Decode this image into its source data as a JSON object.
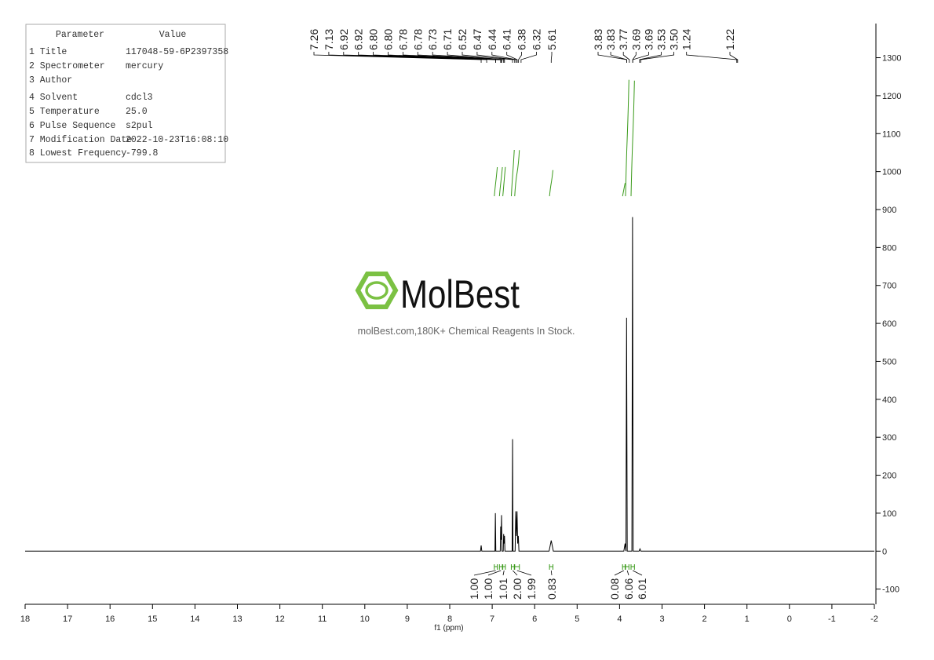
{
  "chart_data": {
    "type": "nmr",
    "xlabel": "f1 (ppm)",
    "xlim": [
      18,
      -2
    ],
    "ylim": [
      -140,
      1390
    ],
    "xticks": [
      18,
      17,
      16,
      15,
      14,
      13,
      12,
      11,
      10,
      9,
      8,
      7,
      6,
      5,
      4,
      3,
      2,
      1,
      0,
      -1,
      -2
    ],
    "yticks": [
      -100,
      0,
      100,
      200,
      300,
      400,
      500,
      600,
      700,
      800,
      900,
      1000,
      1100,
      1200,
      1300
    ],
    "x": [
      18,
      7.275,
      7.26,
      7.245,
      6.935,
      6.925,
      6.915,
      6.81,
      6.8,
      6.79,
      6.78,
      6.77,
      6.74,
      6.73,
      6.72,
      6.71,
      6.7,
      6.53,
      6.52,
      6.51,
      6.46,
      6.445,
      6.43,
      6.415,
      6.4,
      6.385,
      6.37,
      5.66,
      5.61,
      5.56,
      3.9,
      3.87,
      3.85,
      3.835,
      3.82,
      3.71,
      3.695,
      3.68,
      3.54,
      3.52,
      3.5,
      -2
    ],
    "series": [
      {
        "color": "#000000",
        "values": [
          0,
          0,
          15,
          0,
          0,
          100,
          0,
          0,
          65,
          30,
          95,
          0,
          0,
          45,
          20,
          40,
          0,
          0,
          295,
          0,
          0,
          105,
          40,
          105,
          20,
          40,
          0,
          0,
          28,
          0,
          0,
          20,
          0,
          615,
          0,
          0,
          880,
          0,
          0,
          6,
          0,
          0
        ]
      }
    ],
    "peaks": {
      "values": [
        7.26,
        7.13,
        6.92,
        6.92,
        6.8,
        6.8,
        6.78,
        6.78,
        6.73,
        6.71,
        6.52,
        6.47,
        6.44,
        6.41,
        6.38,
        6.32,
        5.61,
        3.83,
        3.83,
        3.77,
        3.69,
        3.69,
        3.53,
        3.5,
        1.24,
        1.22
      ],
      "value_labels": [
        "7.26",
        "7.13",
        "6.92",
        "6.92",
        "6.80",
        "6.80",
        "6.78",
        "6.78",
        "6.73",
        "6.71",
        "6.52",
        "6.47",
        "6.44",
        "6.41",
        "6.38",
        "6.32",
        "5.61",
        "3.83",
        "3.83",
        "3.77",
        "3.69",
        "3.69",
        "3.53",
        "3.50",
        "1.24",
        "1.22"
      ]
    },
    "integrals": {
      "color": "#3a9a1a",
      "ranges": [
        [
          6.95,
          6.88
        ],
        [
          6.83,
          6.76
        ],
        [
          6.75,
          6.69
        ],
        [
          6.55,
          6.48
        ],
        [
          6.47,
          6.36
        ],
        [
          5.65,
          5.57
        ],
        [
          3.93,
          3.87
        ],
        [
          3.86,
          3.78
        ],
        [
          3.73,
          3.65
        ]
      ],
      "values": [
        1,
        1,
        1.01,
        2,
        1.99,
        0.83,
        0.08,
        6.06,
        6.01
      ],
      "value_labels": [
        "1.00",
        "1.00",
        "1.01",
        "2.00",
        "1.99",
        "0.83",
        "0.08",
        "6.06",
        "6.01"
      ]
    }
  },
  "parameters": {
    "header": [
      "Parameter",
      "Value"
    ],
    "rows": [
      [
        "1 Title",
        "117048-59-6P2397358"
      ],
      [
        "2 Spectrometer",
        "mercury"
      ],
      [
        "3 Author"
      ],
      [
        "4 Solvent",
        "cdcl3"
      ],
      [
        "5 Temperature",
        "25.0"
      ],
      [
        "6 Pulse Sequence",
        "s2pul"
      ],
      [
        "7 Modification Date",
        "2022-10-23T16:08:10"
      ],
      [
        "8 Lowest Frequency",
        "-799.8"
      ]
    ]
  },
  "watermark": {
    "logo": "MolBest",
    "tagline": "molBest.com,180K+ Chemical Reagents In Stock."
  }
}
